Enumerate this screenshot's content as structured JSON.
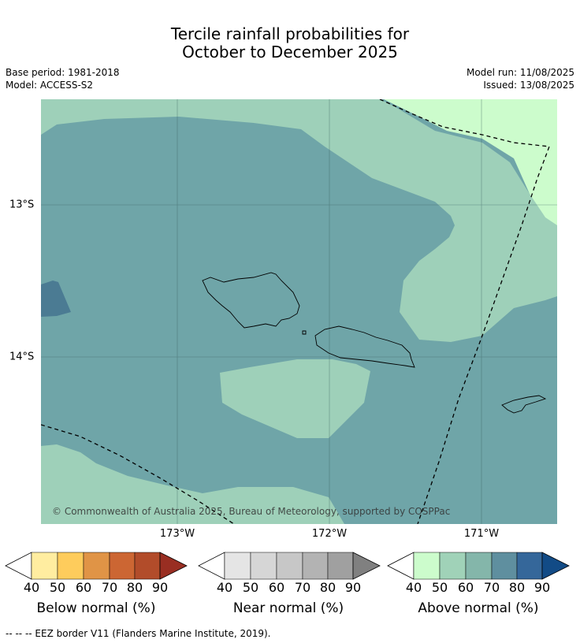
{
  "title_line1": "Tercile rainfall probabilities for",
  "title_line2": "October to December 2025",
  "base_period": "Base period: 1981-2018",
  "model": "Model: ACCESS-S2",
  "model_run": "Model run: 11/08/2025",
  "issued": "Issued: 13/08/2025",
  "copyright": "© Commonwealth of Australia 2025, Bureau of Meteorology, supported by COSPPac",
  "lon_labels": [
    "173°W",
    "172°W",
    "171°W"
  ],
  "lat_labels": [
    "13°S",
    "14°S"
  ],
  "colorbars": [
    {
      "label": "Below normal (%)",
      "ticks": [
        "40",
        "50",
        "60",
        "70",
        "80",
        "90"
      ],
      "colors": [
        "#ffffff",
        "#ffeda0",
        "#fecc5c",
        "#e09446",
        "#cc6633",
        "#b24c2a",
        "#992e22"
      ]
    },
    {
      "label": "Near normal (%)",
      "ticks": [
        "40",
        "50",
        "60",
        "70",
        "80",
        "90"
      ],
      "colors": [
        "#ffffff",
        "#e5e5e5",
        "#d6d6d6",
        "#c7c7c7",
        "#b3b3b3",
        "#a0a0a0",
        "#808080"
      ]
    },
    {
      "label": "Above normal (%)",
      "ticks": [
        "40",
        "50",
        "60",
        "70",
        "80",
        "90"
      ],
      "colors": [
        "#ffffff",
        "#ccfccc",
        "#a0d2b8",
        "#84b6aa",
        "#5f8f9f",
        "#35679a",
        "#124b86"
      ]
    }
  ],
  "footnote": "--  --  -- EEZ border V11 (Flanders Marine Institute, 2019).",
  "map_colors": {
    "above_40_50": "#ccfccc",
    "above_50_60": "#9ed0b9",
    "above_60_70": "#6fa5a8",
    "above_70_80": "#4b7b93"
  }
}
